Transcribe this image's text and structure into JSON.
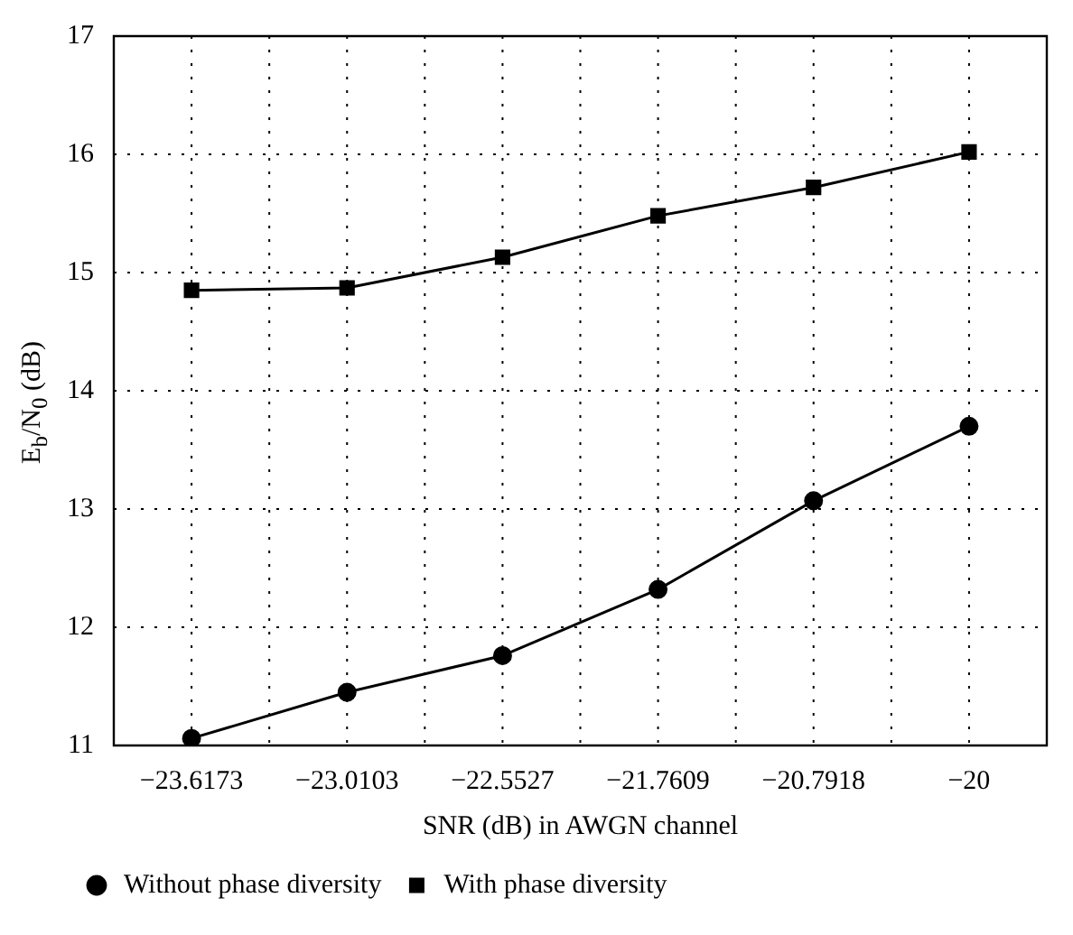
{
  "chart_data": {
    "type": "line",
    "xlabel": "SNR (dB) in AWGN channel",
    "ylabel": "E$_{b}$/N$_{0}$ (dB)",
    "categories": [
      "−23.6173",
      "−23.0103",
      "−22.5527",
      "−21.7609",
      "−20.7918",
      "−20"
    ],
    "series": [
      {
        "name": "Without phase diversity",
        "color": "#000000",
        "marker": "circle",
        "values": [
          11.06,
          11.45,
          11.76,
          12.32,
          13.07,
          13.7
        ]
      },
      {
        "name": "With phase diversity",
        "color": "#000000",
        "marker": "square",
        "values": [
          14.85,
          14.87,
          15.13,
          15.48,
          15.72,
          16.02
        ]
      }
    ],
    "ylim": [
      11,
      17
    ],
    "yticks": [
      11,
      12,
      13,
      14,
      15,
      16,
      17
    ],
    "grid": true,
    "legend": "bottom left",
    "line_style": "solid"
  }
}
